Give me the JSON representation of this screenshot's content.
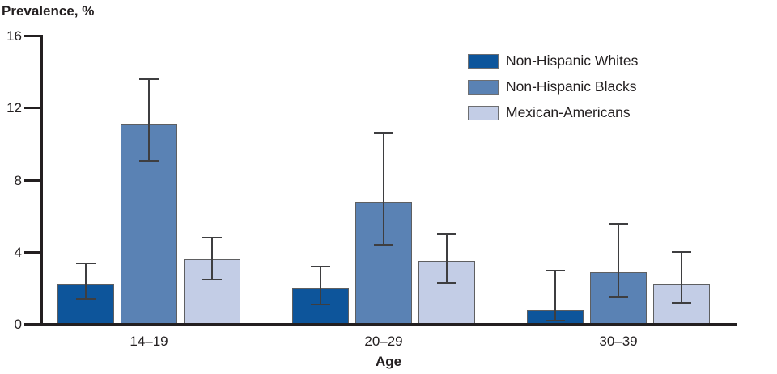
{
  "chart_data": {
    "type": "bar",
    "title": "Prevalence, %",
    "xlabel": "Age",
    "ylabel": "Prevalence, %",
    "ylim": [
      0,
      16
    ],
    "yticks": [
      0,
      4,
      8,
      12,
      16
    ],
    "categories": [
      "14–19",
      "20–29",
      "30–39"
    ],
    "series": [
      {
        "name": "Non-Hispanic Whites",
        "color": "#0D559B",
        "values": [
          2.2,
          2.0,
          0.8
        ],
        "ci_low": [
          1.4,
          1.1,
          0.2
        ],
        "ci_high": [
          3.4,
          3.2,
          3.0
        ]
      },
      {
        "name": "Non-Hispanic Blacks",
        "color": "#5A82B4",
        "values": [
          11.1,
          6.8,
          2.9
        ],
        "ci_low": [
          9.1,
          4.4,
          1.5
        ],
        "ci_high": [
          13.6,
          10.6,
          5.6
        ]
      },
      {
        "name": "Mexican-Americans",
        "color": "#C3CDE6",
        "values": [
          3.6,
          3.5,
          2.2
        ],
        "ci_low": [
          2.5,
          2.3,
          1.2
        ],
        "ci_high": [
          4.8,
          5.0,
          4.0
        ]
      }
    ],
    "error_bars": true,
    "grid": false,
    "legend_position": "top-right"
  },
  "colors": {
    "axis": "#231F20",
    "error_bar": "#3E3E40",
    "bar_border": "#5E5F61",
    "background": "#FFFFFF"
  }
}
